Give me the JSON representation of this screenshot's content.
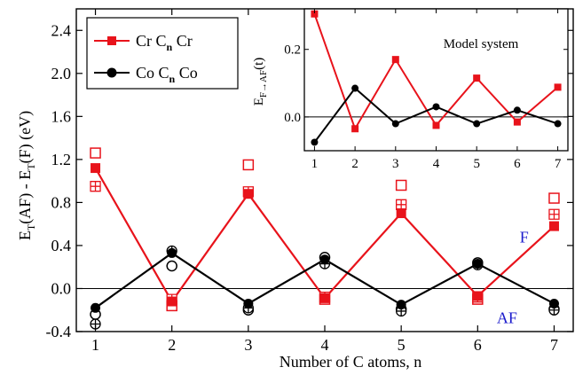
{
  "chart_data": [
    {
      "type": "line",
      "xlabel": "Number of C atoms, n",
      "ylabel": "E_T(AF) - E_T(F) (eV)",
      "ylabel_parts": {
        "e1": "E",
        "s1": "T",
        "m1": "(AF) - E",
        "s2": "T",
        "m2": "(F) (eV)"
      },
      "x": [
        1,
        2,
        3,
        4,
        5,
        6,
        7
      ],
      "xlim": [
        0.75,
        7.25
      ],
      "ylim": [
        -0.4,
        2.6
      ],
      "xticks": [
        1,
        2,
        3,
        4,
        5,
        6,
        7
      ],
      "yticks": [
        -0.4,
        0.0,
        0.4,
        0.8,
        1.2,
        1.6,
        2.0,
        2.4
      ],
      "ytick_labels": [
        "-0.4",
        "0.0",
        "0.4",
        "0.8",
        "1.2",
        "1.6",
        "2.0",
        "2.4"
      ],
      "reference_line": 0.0,
      "legend_position": "top-left",
      "series": [
        {
          "name": "Cr C_n Cr",
          "legend": {
            "a": "Cr C",
            "sub": "n",
            "b": " Cr"
          },
          "color": "#e8131b",
          "marker": "filled-square",
          "values": [
            1.12,
            -0.12,
            0.88,
            -0.09,
            0.7,
            -0.07,
            0.58
          ]
        },
        {
          "name": "Co C_n Co",
          "legend": {
            "a": "Co C",
            "sub": "n",
            "b": " Co"
          },
          "color": "#000000",
          "marker": "filled-circle",
          "values": [
            -0.18,
            0.33,
            -0.14,
            0.27,
            -0.15,
            0.23,
            -0.14
          ]
        }
      ],
      "extra_points": [
        {
          "color": "#e8131b",
          "marker": "open-square",
          "values": [
            1.26,
            -0.16,
            1.15,
            -0.1,
            0.96,
            -0.1,
            0.84
          ]
        },
        {
          "color": "#e8131b",
          "marker": "crossed-square",
          "values": [
            0.95,
            -0.1,
            0.9,
            -0.08,
            0.78,
            -0.08,
            0.69
          ]
        },
        {
          "color": "#000000",
          "marker": "open-circle",
          "values": [
            -0.24,
            0.21,
            -0.2,
            0.29,
            -0.19,
            0.24,
            -0.19
          ]
        },
        {
          "color": "#000000",
          "marker": "crossed-circle",
          "values": [
            -0.33,
            0.35,
            -0.18,
            0.23,
            -0.21,
            0.22,
            -0.2
          ]
        }
      ],
      "annotations": [
        {
          "text": "F",
          "color": "#1a1acc"
        },
        {
          "text": "AF",
          "color": "#1a1acc"
        }
      ]
    },
    {
      "type": "line",
      "title": "Model system",
      "ylabel_parts": {
        "e": "E",
        "sub": "F→AF",
        "rest": "(t)"
      },
      "x": [
        1,
        2,
        3,
        4,
        5,
        6,
        7
      ],
      "xlim": [
        0.75,
        7.25
      ],
      "ylim": [
        -0.1,
        0.32
      ],
      "xticks": [
        1,
        2,
        3,
        4,
        5,
        6,
        7
      ],
      "yticks": [
        0.0,
        0.2
      ],
      "ytick_labels": [
        "0.0",
        "0.2"
      ],
      "reference_line": 0.0,
      "series": [
        {
          "color": "#e8131b",
          "marker": "filled-square",
          "values": [
            0.305,
            -0.035,
            0.17,
            -0.025,
            0.115,
            -0.015,
            0.088
          ]
        },
        {
          "color": "#000000",
          "marker": "filled-circle",
          "values": [
            -0.075,
            0.085,
            -0.02,
            0.03,
            -0.02,
            0.02,
            -0.02
          ]
        }
      ]
    }
  ]
}
